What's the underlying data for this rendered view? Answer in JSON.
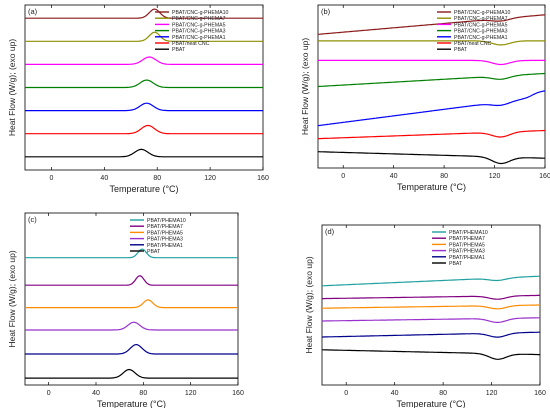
{
  "chart_data": [
    {
      "type": "line",
      "panel_label": "(a)",
      "xlabel": "Temperature (°C)",
      "ylabel": "Heat Flow (W/g); (exo up)",
      "xlim": [
        -20,
        160
      ],
      "xticks": [
        0,
        40,
        80,
        120,
        160
      ],
      "legend_position": "top-right",
      "series": [
        {
          "name": "PBAT/CNC-g-PHEMA10",
          "color": "#8b1a1a",
          "baseline": 0.92,
          "features": [
            {
              "type": "peak",
              "center": 78,
              "width": 4,
              "amp": 0.55
            }
          ]
        },
        {
          "name": "PBAT/CNC-g-PHEMA7",
          "color": "#8f8f00",
          "baseline": 0.78,
          "features": [
            {
              "type": "peak",
              "center": 78,
              "width": 4,
              "amp": 0.55
            }
          ]
        },
        {
          "name": "PBAT/CNC-g-PHEMA5",
          "color": "#ff00ff",
          "baseline": 0.64,
          "features": [
            {
              "type": "peak",
              "center": 74,
              "width": 5,
              "amp": 0.45
            }
          ]
        },
        {
          "name": "PBAT/CNC-g-PHEMA3",
          "color": "#008000",
          "baseline": 0.5,
          "features": [
            {
              "type": "peak",
              "center": 72,
              "width": 5,
              "amp": 0.45
            }
          ]
        },
        {
          "name": "PBAT/CNC-g-PHEMA1",
          "color": "#0000ff",
          "baseline": 0.36,
          "features": [
            {
              "type": "peak",
              "center": 72,
              "width": 5,
              "amp": 0.45
            }
          ]
        },
        {
          "name": "PBAT/neat CNC",
          "color": "#ff0000",
          "baseline": 0.22,
          "features": [
            {
              "type": "peak",
              "center": 73,
              "width": 5,
              "amp": 0.5
            }
          ]
        },
        {
          "name": "PBAT",
          "color": "#000000",
          "baseline": 0.08,
          "features": [
            {
              "type": "peak",
              "center": 68,
              "width": 5,
              "amp": 0.45
            }
          ]
        }
      ]
    },
    {
      "type": "line",
      "panel_label": "(b)",
      "xlabel": "Temperature (°C)",
      "ylabel": "Heat Flow (W/g); (exo up)",
      "xlim": [
        -20,
        160
      ],
      "xticks": [
        0,
        40,
        80,
        120,
        160
      ],
      "legend_position": "top-right",
      "series": [
        {
          "name": "PBAT/CNC-g-PHEMA10",
          "color": "#8b1a1a",
          "baseline": 0.82,
          "slope": 0.12,
          "features": [
            {
              "type": "dip",
              "center": 125,
              "width": 7,
              "amp": 0.15
            }
          ]
        },
        {
          "name": "PBAT/CNC-g-PHEMA7",
          "color": "#8f8f00",
          "baseline": 0.78,
          "slope": 0.0,
          "features": [
            {
              "type": "dip",
              "center": 125,
              "width": 7,
              "amp": 0.25
            }
          ]
        },
        {
          "name": "PBAT/CNC-g-PHEMA5",
          "color": "#ff00ff",
          "baseline": 0.66,
          "slope": 0.0,
          "features": [
            {
              "type": "dip",
              "center": 125,
              "width": 7,
              "amp": 0.25
            }
          ]
        },
        {
          "name": "PBAT/CNC-g-PHEMA3",
          "color": "#008000",
          "baseline": 0.5,
          "slope": 0.08,
          "features": [
            {
              "type": "dip",
              "center": 125,
              "width": 7,
              "amp": 0.2
            }
          ]
        },
        {
          "name": "PBAT/CNC-g-PHEMA1",
          "color": "#0000ff",
          "baseline": 0.26,
          "slope": 0.18,
          "features": [
            {
              "type": "dip",
              "center": 125,
              "width": 7,
              "amp": 0.2
            },
            {
              "type": "step",
              "center": 150,
              "width": 3,
              "amp": 0.35
            }
          ]
        },
        {
          "name": "PBAT/neat CNC",
          "color": "#ff0000",
          "baseline": 0.18,
          "slope": 0.05,
          "features": [
            {
              "type": "dip",
              "center": 125,
              "width": 7,
              "amp": 0.3
            }
          ]
        },
        {
          "name": "PBAT",
          "color": "#000000",
          "baseline": 0.1,
          "slope": -0.04,
          "features": [
            {
              "type": "dip",
              "center": 125,
              "width": 7,
              "amp": 0.4
            }
          ]
        }
      ]
    },
    {
      "type": "line",
      "panel_label": "(c)",
      "xlabel": "Temperature (°C)",
      "ylabel": "Heat Flow (W/g); (exo up)",
      "xlim": [
        -20,
        160
      ],
      "xticks": [
        0,
        40,
        80,
        120,
        160
      ],
      "legend_position": "top-right",
      "series": [
        {
          "name": "PBAT/PHEMA10",
          "color": "#20a0a0",
          "baseline": 0.74,
          "features": [
            {
              "type": "peak",
              "center": 79,
              "width": 3.5,
              "amp": 0.5
            }
          ]
        },
        {
          "name": "PBAT/PHEMA7",
          "color": "#800080",
          "baseline": 0.58,
          "features": [
            {
              "type": "peak",
              "center": 77,
              "width": 3.5,
              "amp": 0.55
            }
          ]
        },
        {
          "name": "PBAT/PHEMA5",
          "color": "#ff8c00",
          "baseline": 0.45,
          "features": [
            {
              "type": "peak",
              "center": 84,
              "width": 4,
              "amp": 0.45
            }
          ]
        },
        {
          "name": "PBAT/PHEMA3",
          "color": "#9932cc",
          "baseline": 0.32,
          "features": [
            {
              "type": "peak",
              "center": 72,
              "width": 5,
              "amp": 0.45
            }
          ]
        },
        {
          "name": "PBAT/PHEMA1",
          "color": "#00008b",
          "baseline": 0.18,
          "features": [
            {
              "type": "peak",
              "center": 74,
              "width": 5,
              "amp": 0.55
            }
          ]
        },
        {
          "name": "PBAT",
          "color": "#000000",
          "baseline": 0.04,
          "features": [
            {
              "type": "peak",
              "center": 68,
              "width": 5,
              "amp": 0.5
            }
          ]
        }
      ]
    },
    {
      "type": "line",
      "panel_label": "(d)",
      "xlabel": "Temperature (°C)",
      "ylabel": "Heat Flow (W/g); (exo up)",
      "xlim": [
        -20,
        160
      ],
      "xticks": [
        0,
        40,
        80,
        120,
        160
      ],
      "legend_position": "top-right",
      "series": [
        {
          "name": "PBAT/PHEMA10",
          "color": "#20a0a0",
          "baseline": 0.62,
          "slope": 0.06,
          "features": [
            {
              "type": "dip",
              "center": 125,
              "width": 7,
              "amp": 0.15
            }
          ]
        },
        {
          "name": "PBAT/PHEMA7",
          "color": "#800080",
          "baseline": 0.54,
          "slope": 0.02,
          "features": [
            {
              "type": "dip",
              "center": 125,
              "width": 7,
              "amp": 0.2
            }
          ]
        },
        {
          "name": "PBAT/PHEMA5",
          "color": "#ff8c00",
          "baseline": 0.48,
          "slope": 0.02,
          "features": [
            {
              "type": "dip",
              "center": 125,
              "width": 7,
              "amp": 0.2
            }
          ]
        },
        {
          "name": "PBAT/PHEMA3",
          "color": "#9932cc",
          "baseline": 0.4,
          "slope": 0.02,
          "features": [
            {
              "type": "dip",
              "center": 125,
              "width": 7,
              "amp": 0.25
            }
          ]
        },
        {
          "name": "PBAT/PHEMA1",
          "color": "#00008b",
          "baseline": 0.3,
          "slope": 0.03,
          "features": [
            {
              "type": "dip",
              "center": 125,
              "width": 7,
              "amp": 0.25
            }
          ]
        },
        {
          "name": "PBAT",
          "color": "#000000",
          "baseline": 0.22,
          "slope": -0.03,
          "features": [
            {
              "type": "dip",
              "center": 125,
              "width": 7,
              "amp": 0.35
            }
          ]
        }
      ]
    }
  ]
}
